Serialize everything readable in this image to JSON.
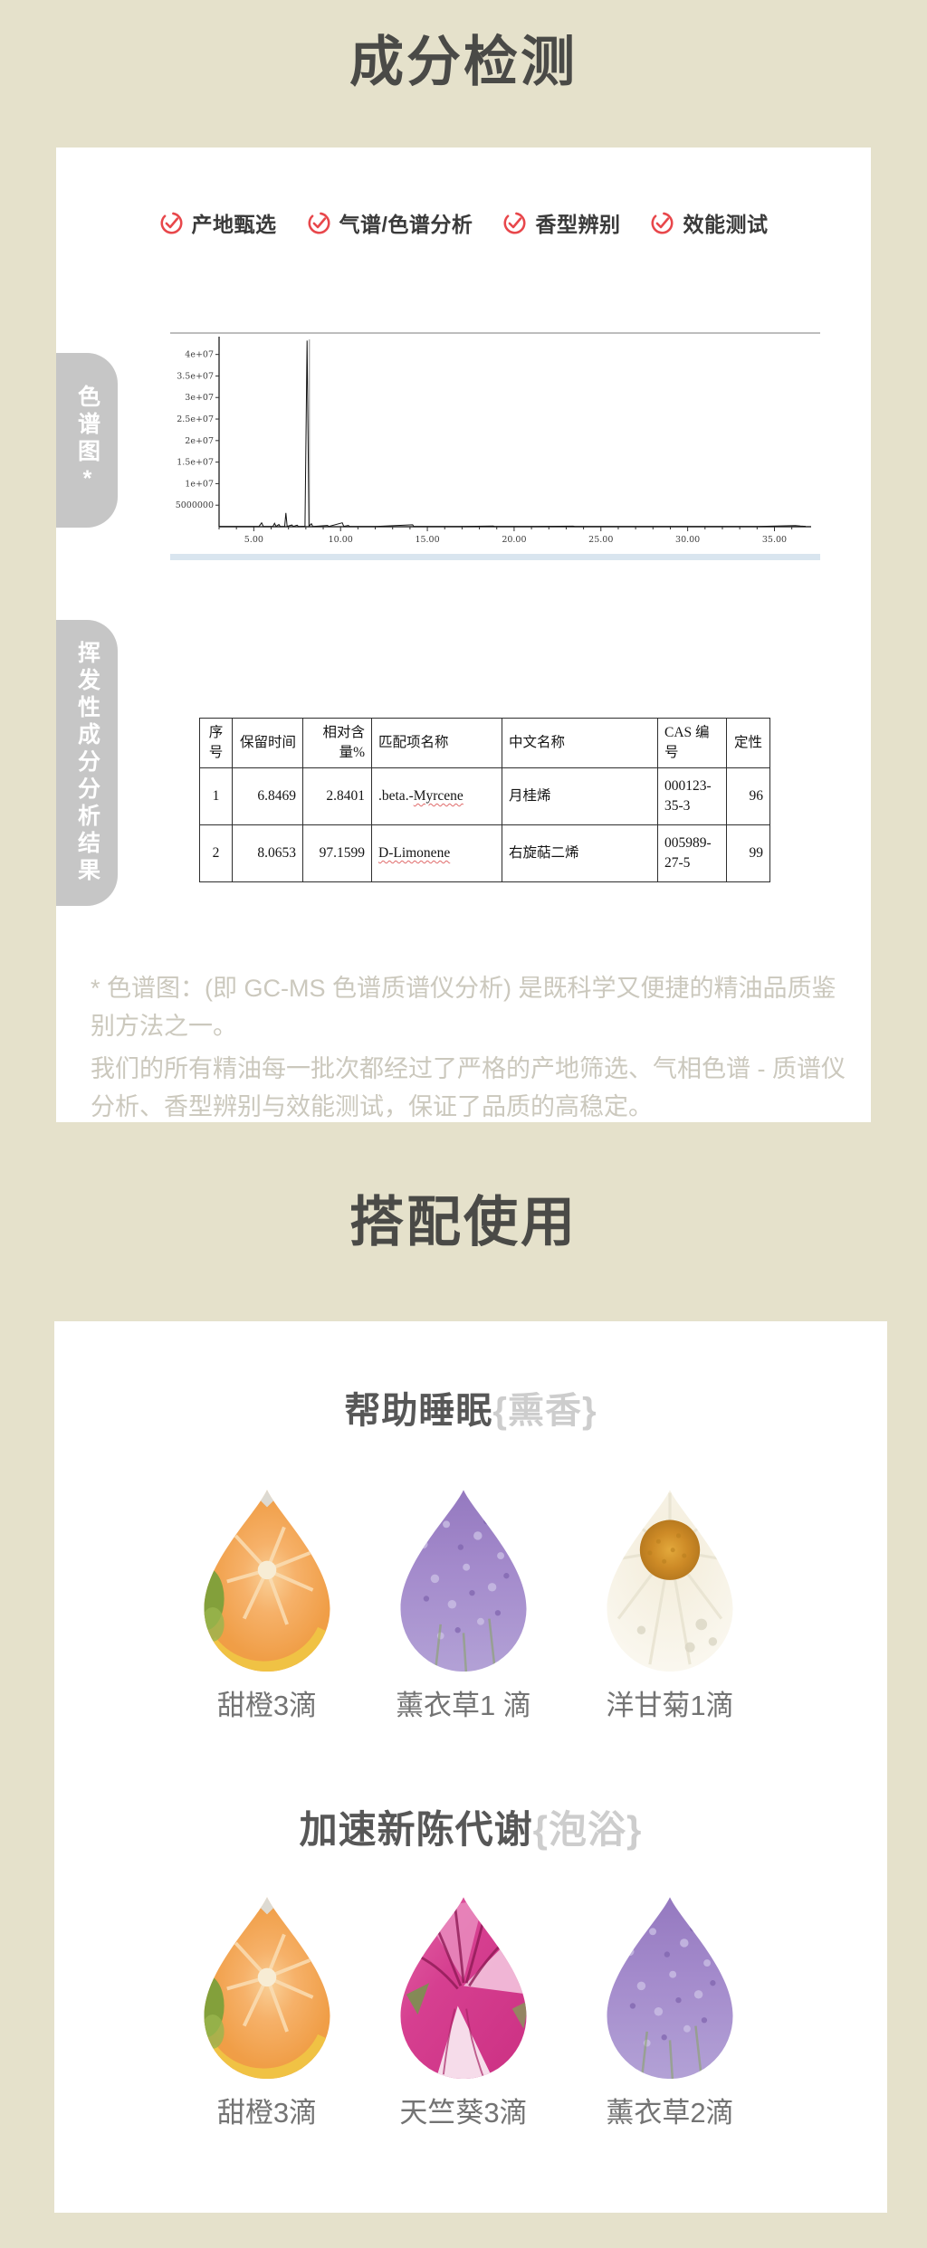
{
  "colors": {
    "page_background": "#e5e1cb",
    "card_background": "#ffffff",
    "accent_red": "#e8474b",
    "tab_gray": "#c6c6c6",
    "title_gray": "#4a4a47",
    "footnote_gray": "#cbc8bd"
  },
  "section1": {
    "title": "成分检测",
    "badges": [
      {
        "label": "产地甄选"
      },
      {
        "label": "气谱/色谱分析"
      },
      {
        "label": "香型辨别"
      },
      {
        "label": "效能测试"
      }
    ],
    "tabs": [
      {
        "label": "色谱图*"
      },
      {
        "label": "挥发性成分分析结果"
      }
    ],
    "table": {
      "headers": [
        "序号",
        "保留时间",
        "相对含量%",
        "匹配项名称",
        "中文名称",
        "CAS 编号",
        "定性"
      ],
      "rows": [
        {
          "seq": "1",
          "retention": "6.8469",
          "relative": "2.8401",
          "match_prefix": ".beta.-",
          "match_word": "Myrcene",
          "cn": "月桂烯",
          "cas": "000123-35-3",
          "quality": "96"
        },
        {
          "seq": "2",
          "retention": "8.0653",
          "relative": "97.1599",
          "match_prefix": "",
          "match_word": "D-Limonene",
          "cn": "右旋萜二烯",
          "cas": "005989-27-5",
          "quality": "99"
        }
      ]
    },
    "footnote1": "* 色谱图：(即 GC-MS 色谱质谱仪分析) 是既科学又便捷的精油品质鉴别方法之一。",
    "footnote2": "我们的所有精油每一批次都经过了严格的产地筛选、气相色谱 - 质谱仪分析、香型辨别与效能测试，保证了品质的高稳定。"
  },
  "section2": {
    "title": "搭配使用",
    "recipes": [
      {
        "heading_main": "帮助睡眠",
        "heading_tag": "{熏香}",
        "items": [
          {
            "label": "甜橙3滴",
            "image": "sweet-orange"
          },
          {
            "label": "薰衣草1 滴",
            "image": "lavender"
          },
          {
            "label": "洋甘菊1滴",
            "image": "chamomile"
          }
        ]
      },
      {
        "heading_main": "加速新陈代谢",
        "heading_tag": "{泡浴}",
        "items": [
          {
            "label": "甜橙3滴",
            "image": "sweet-orange"
          },
          {
            "label": "天竺葵3滴",
            "image": "geranium"
          },
          {
            "label": "薰衣草2滴",
            "image": "lavender"
          }
        ]
      }
    ]
  },
  "chart_data": {
    "type": "line",
    "description": "GC-MS chromatogram, intensity vs retention time",
    "xlim": [
      3,
      36.8
    ],
    "ylim": [
      0,
      43500000
    ],
    "xticks": [
      5,
      10,
      15,
      20,
      25,
      30,
      35
    ],
    "xtick_labels": [
      "5.00",
      "10.00",
      "15.00",
      "20.00",
      "25.00",
      "30.00",
      "35.00"
    ],
    "ytick_values": [
      5000000,
      10000000,
      15000000,
      20000000,
      25000000,
      30000000,
      35000000,
      40000000
    ],
    "ytick_labels": [
      "5000000",
      "1e+07",
      "1.5e+07",
      "2e+07",
      "2.5e+07",
      "3e+07",
      "3.5e+07",
      "4e+07"
    ],
    "grid": false,
    "legend": false,
    "cursor_x": 8.2,
    "main_peaks": [
      {
        "x": 6.8469,
        "label": ".beta.-Myrcene",
        "intensity": 3200000
      },
      {
        "x": 8.0653,
        "label": "D-Limonene",
        "intensity": 43200000
      }
    ],
    "trace": [
      [
        3.0,
        50000
      ],
      [
        4.5,
        60000
      ],
      [
        5.3,
        60000
      ],
      [
        5.45,
        900000
      ],
      [
        5.55,
        60000
      ],
      [
        6.1,
        60000
      ],
      [
        6.2,
        800000
      ],
      [
        6.28,
        60000
      ],
      [
        6.45,
        500000
      ],
      [
        6.52,
        60000
      ],
      [
        6.78,
        80000
      ],
      [
        6.85,
        3200000
      ],
      [
        6.92,
        80000
      ],
      [
        7.2,
        400000
      ],
      [
        7.27,
        60000
      ],
      [
        7.5,
        350000
      ],
      [
        7.57,
        60000
      ],
      [
        7.95,
        100000
      ],
      [
        8.07,
        43200000
      ],
      [
        8.18,
        120000
      ],
      [
        8.32,
        700000
      ],
      [
        8.4,
        60000
      ],
      [
        9.25,
        300000
      ],
      [
        9.32,
        60000
      ],
      [
        10.1,
        900000
      ],
      [
        10.18,
        80000
      ],
      [
        10.45,
        300000
      ],
      [
        10.52,
        60000
      ],
      [
        12.0,
        50000
      ],
      [
        14.15,
        450000
      ],
      [
        14.22,
        50000
      ],
      [
        16.5,
        50000
      ],
      [
        18.8,
        150000
      ],
      [
        18.9,
        50000
      ],
      [
        21.0,
        50000
      ],
      [
        23.4,
        120000
      ],
      [
        23.5,
        50000
      ],
      [
        26.0,
        50000
      ],
      [
        29.0,
        50000
      ],
      [
        31.5,
        60000
      ],
      [
        34.0,
        50000
      ],
      [
        36.2,
        250000
      ],
      [
        36.5,
        150000
      ],
      [
        36.8,
        80000
      ]
    ]
  }
}
